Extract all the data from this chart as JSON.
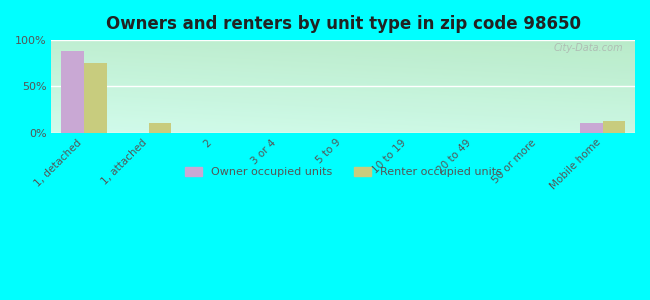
{
  "title": "Owners and renters by unit type in zip code 98650",
  "categories": [
    "1, detached",
    "1, attached",
    "2",
    "3 or 4",
    "5 to 9",
    "10 to 19",
    "20 to 49",
    "50 or more",
    "Mobile home"
  ],
  "owner_values": [
    88,
    0,
    0,
    0,
    0,
    0,
    0,
    0,
    10
  ],
  "renter_values": [
    75,
    10,
    0,
    0,
    0,
    0,
    0,
    0,
    12
  ],
  "owner_color": "#c9a8d4",
  "renter_color": "#c8cc7e",
  "background_color": "#00ffff",
  "plot_bg_top": "#e8f0d0",
  "plot_bg_bottom": "#f5f8ec",
  "ylim": [
    0,
    100
  ],
  "yticks": [
    0,
    50,
    100
  ],
  "ytick_labels": [
    "0%",
    "50%",
    "100%"
  ],
  "bar_width": 0.35,
  "legend_owner": "Owner occupied units",
  "legend_renter": "Renter occupied units",
  "watermark": "City-Data.com"
}
